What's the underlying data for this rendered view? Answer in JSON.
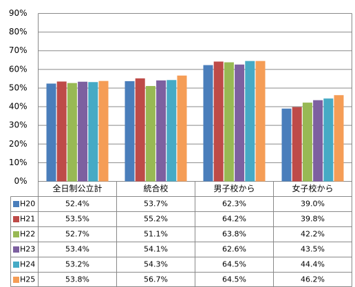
{
  "chart_data": {
    "type": "bar",
    "categories": [
      "全日制公立計",
      "統合校",
      "男子校から",
      "女子校から"
    ],
    "series": [
      {
        "name": "H20",
        "color": "#4a7ebb",
        "values": [
          52.4,
          53.7,
          62.3,
          39.0
        ],
        "value_labels": [
          "52.4%",
          "53.7%",
          "62.3%",
          "39.0%"
        ]
      },
      {
        "name": "H21",
        "color": "#be4b48",
        "values": [
          53.5,
          55.2,
          64.2,
          39.8
        ],
        "value_labels": [
          "53.5%",
          "55.2%",
          "64.2%",
          "39.8%"
        ]
      },
      {
        "name": "H22",
        "color": "#98b954",
        "values": [
          52.7,
          51.1,
          63.8,
          42.2
        ],
        "value_labels": [
          "52.7%",
          "51.1%",
          "63.8%",
          "42.2%"
        ]
      },
      {
        "name": "H23",
        "color": "#7d60a0",
        "values": [
          53.4,
          54.1,
          62.6,
          43.5
        ],
        "value_labels": [
          "53.4%",
          "54.1%",
          "62.6%",
          "43.5%"
        ]
      },
      {
        "name": "H24",
        "color": "#46aac5",
        "values": [
          53.2,
          54.3,
          64.5,
          44.4
        ],
        "value_labels": [
          "53.2%",
          "54.3%",
          "64.5%",
          "44.4%"
        ]
      },
      {
        "name": "H25",
        "color": "#f59d56",
        "values": [
          53.8,
          56.7,
          64.5,
          46.2
        ],
        "value_labels": [
          "53.8%",
          "56.7%",
          "64.5%",
          "46.2%"
        ]
      }
    ],
    "ylim": [
      0,
      90
    ],
    "yticks": [
      {
        "value": 0,
        "label": "0%"
      },
      {
        "value": 10,
        "label": "10%"
      },
      {
        "value": 20,
        "label": "20%"
      },
      {
        "value": 30,
        "label": "30%"
      },
      {
        "value": 40,
        "label": "40%"
      },
      {
        "value": 50,
        "label": "50%"
      },
      {
        "value": 60,
        "label": "60%"
      },
      {
        "value": 70,
        "label": "70%"
      },
      {
        "value": 80,
        "label": "80%"
      },
      {
        "value": 90,
        "label": "90%"
      }
    ],
    "grid": true
  }
}
